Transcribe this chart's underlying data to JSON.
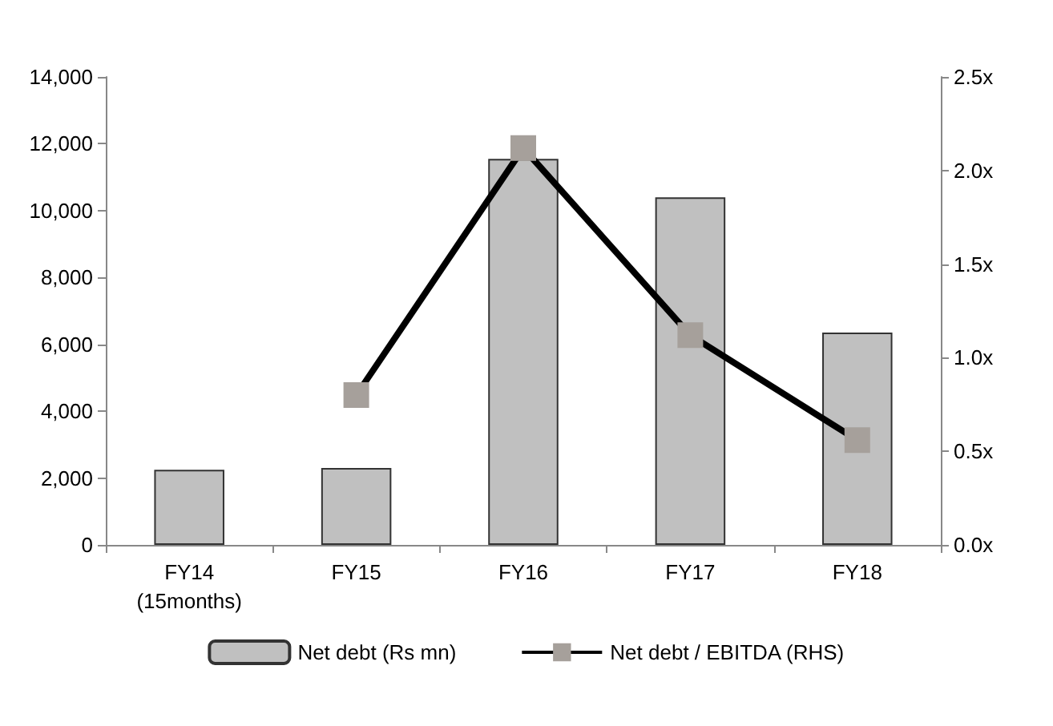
{
  "chart_data": {
    "type": "bar",
    "categories": [
      "FY14\n(15months)",
      "FY15",
      "FY16",
      "FY17",
      "FY18"
    ],
    "series": [
      {
        "name": "Net debt (Rs mn)",
        "color": "#c0c0c0",
        "values": [
          2250,
          2300,
          11550,
          10400,
          6350
        ]
      },
      {
        "name": "Net debt / EBITDA (RHS)",
        "type": "line",
        "axis": "y2",
        "color": "#000000",
        "values": [
          null,
          0.8,
          2.12,
          1.12,
          0.56
        ]
      }
    ],
    "ylim": [
      0,
      14000
    ],
    "yticks": [
      {
        "value": 0,
        "label": "0"
      },
      {
        "value": 2000,
        "label": "2,000"
      },
      {
        "value": 4000,
        "label": "4,000"
      },
      {
        "value": 6000,
        "label": "6,000"
      },
      {
        "value": 8000,
        "label": "8,000"
      },
      {
        "value": 10000,
        "label": "10,000"
      },
      {
        "value": 12000,
        "label": "12,000"
      },
      {
        "value": 14000,
        "label": "14,000"
      }
    ],
    "y2lim": [
      0,
      2.5
    ],
    "y2ticks": [
      {
        "value": 0,
        "label": "0.0x"
      },
      {
        "value": 0.5,
        "label": "0.5x"
      },
      {
        "value": 1,
        "label": "1.0x"
      },
      {
        "value": 1.5,
        "label": "1.5x"
      },
      {
        "value": 2,
        "label": "2.0x"
      },
      {
        "value": 2.5,
        "label": "2.5x"
      }
    ],
    "legend": "bottom",
    "marker": "square",
    "line_style": "solid"
  }
}
